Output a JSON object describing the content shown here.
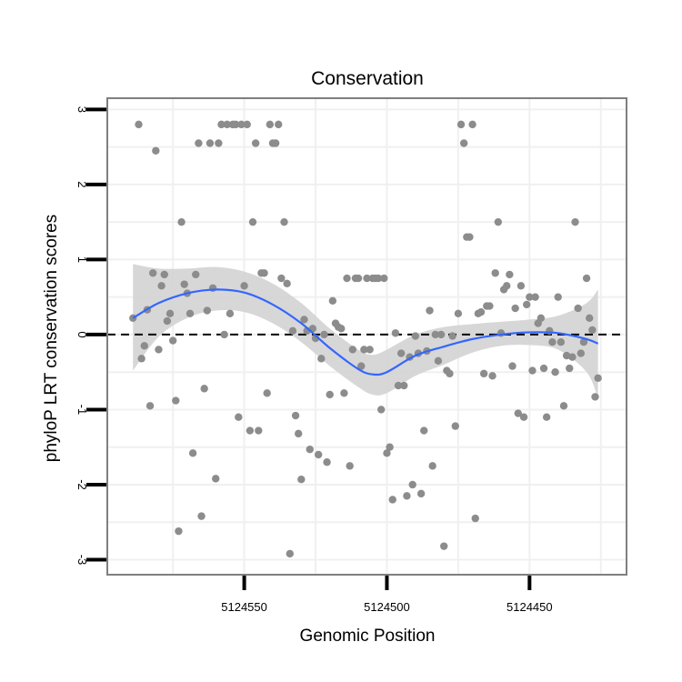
{
  "chart_data": {
    "type": "scatter",
    "title": "Conservation",
    "xlabel": "Genomic Position",
    "ylabel": "phyloP LRT conservation scores",
    "x_reversed": true,
    "xlim": [
      5124416,
      5124598
    ],
    "ylim": [
      -3.2,
      3.15
    ],
    "x_ticks": [
      5124550,
      5124500,
      5124450
    ],
    "x_tick_labels": [
      "5124550",
      "5124500",
      "5124450"
    ],
    "y_ticks": [
      3,
      2,
      1,
      0,
      -1,
      -2,
      -3
    ],
    "y_tick_labels": [
      "3",
      "2",
      "1",
      "0",
      "-1",
      "-2",
      "-3"
    ],
    "reference_line": {
      "y": 0,
      "style": "dashed",
      "color": "#000000"
    },
    "colors": {
      "points": "#8c8c8c",
      "smooth": "#3366ff",
      "band": "#d3d3d3",
      "grid": "#f0f0f0",
      "frame": "#7f7f7f"
    },
    "points": [
      [
        5124589,
        0.22
      ],
      [
        5124587,
        2.8
      ],
      [
        5124586,
        -0.32
      ],
      [
        5124585,
        -0.15
      ],
      [
        5124584,
        0.33
      ],
      [
        5124583,
        -0.95
      ],
      [
        5124582,
        0.82
      ],
      [
        5124581,
        2.45
      ],
      [
        5124580,
        -0.2
      ],
      [
        5124579,
        0.65
      ],
      [
        5124578,
        0.8
      ],
      [
        5124577,
        0.18
      ],
      [
        5124576,
        0.28
      ],
      [
        5124575,
        -0.08
      ],
      [
        5124574,
        -0.88
      ],
      [
        5124573,
        -2.62
      ],
      [
        5124572,
        1.5
      ],
      [
        5124571,
        0.67
      ],
      [
        5124570,
        0.55
      ],
      [
        5124569,
        0.28
      ],
      [
        5124568,
        -1.58
      ],
      [
        5124567,
        0.8
      ],
      [
        5124566,
        2.55
      ],
      [
        5124565,
        -2.42
      ],
      [
        5124564,
        -0.72
      ],
      [
        5124563,
        0.32
      ],
      [
        5124562,
        2.55
      ],
      [
        5124561,
        0.62
      ],
      [
        5124560,
        -1.92
      ],
      [
        5124559,
        2.55
      ],
      [
        5124558,
        2.8
      ],
      [
        5124557,
        0.0
      ],
      [
        5124556,
        2.8
      ],
      [
        5124555,
        0.28
      ],
      [
        5124554,
        2.8
      ],
      [
        5124553,
        2.8
      ],
      [
        5124552,
        -1.1
      ],
      [
        5124551,
        2.8
      ],
      [
        5124550,
        0.65
      ],
      [
        5124549,
        2.8
      ],
      [
        5124548,
        -1.28
      ],
      [
        5124547,
        1.5
      ],
      [
        5124546,
        2.55
      ],
      [
        5124545,
        -1.28
      ],
      [
        5124544,
        0.82
      ],
      [
        5124543,
        0.82
      ],
      [
        5124542,
        -0.78
      ],
      [
        5124541,
        2.8
      ],
      [
        5124540,
        2.55
      ],
      [
        5124539,
        2.55
      ],
      [
        5124538,
        2.8
      ],
      [
        5124537,
        0.75
      ],
      [
        5124536,
        1.5
      ],
      [
        5124535,
        0.68
      ],
      [
        5124534,
        -2.92
      ],
      [
        5124533,
        0.05
      ],
      [
        5124532,
        -1.08
      ],
      [
        5124531,
        -1.32
      ],
      [
        5124530,
        -1.93
      ],
      [
        5124529,
        0.2
      ],
      [
        5124528,
        0.05
      ],
      [
        5124527,
        -1.53
      ],
      [
        5124526,
        0.08
      ],
      [
        5124525,
        -0.05
      ],
      [
        5124524,
        -1.6
      ],
      [
        5124523,
        -0.32
      ],
      [
        5124522,
        0.0
      ],
      [
        5124521,
        -1.7
      ],
      [
        5124520,
        -0.8
      ],
      [
        5124519,
        0.45
      ],
      [
        5124518,
        0.15
      ],
      [
        5124517,
        0.1
      ],
      [
        5124516,
        0.08
      ],
      [
        5124515,
        -0.78
      ],
      [
        5124514,
        0.75
      ],
      [
        5124513,
        -1.75
      ],
      [
        5124512,
        -0.2
      ],
      [
        5124511,
        0.75
      ],
      [
        5124510,
        0.75
      ],
      [
        5124509,
        -0.42
      ],
      [
        5124508,
        -0.2
      ],
      [
        5124507,
        0.75
      ],
      [
        5124506,
        -0.2
      ],
      [
        5124505,
        0.75
      ],
      [
        5124504,
        0.75
      ],
      [
        5124503,
        0.75
      ],
      [
        5124502,
        -1.0
      ],
      [
        5124501,
        0.75
      ],
      [
        5124500,
        -1.58
      ],
      [
        5124499,
        -1.5
      ],
      [
        5124498,
        -2.2
      ],
      [
        5124497,
        0.02
      ],
      [
        5124496,
        -0.68
      ],
      [
        5124495,
        -0.25
      ],
      [
        5124494,
        -0.68
      ],
      [
        5124493,
        -2.15
      ],
      [
        5124492,
        -0.3
      ],
      [
        5124491,
        -2.0
      ],
      [
        5124490,
        -0.02
      ],
      [
        5124489,
        -0.25
      ],
      [
        5124488,
        -2.12
      ],
      [
        5124487,
        -1.28
      ],
      [
        5124486,
        -0.22
      ],
      [
        5124485,
        0.32
      ],
      [
        5124484,
        -1.75
      ],
      [
        5124483,
        0.0
      ],
      [
        5124482,
        -0.35
      ],
      [
        5124481,
        0.0
      ],
      [
        5124480,
        -2.82
      ],
      [
        5124479,
        -0.48
      ],
      [
        5124478,
        -0.52
      ],
      [
        5124477,
        -0.02
      ],
      [
        5124476,
        -1.22
      ],
      [
        5124475,
        0.28
      ],
      [
        5124474,
        2.8
      ],
      [
        5124473,
        2.55
      ],
      [
        5124472,
        1.3
      ],
      [
        5124471,
        1.3
      ],
      [
        5124470,
        2.8
      ],
      [
        5124469,
        -2.45
      ],
      [
        5124468,
        0.28
      ],
      [
        5124467,
        0.3
      ],
      [
        5124466,
        -0.52
      ],
      [
        5124465,
        0.38
      ],
      [
        5124464,
        0.38
      ],
      [
        5124463,
        -0.55
      ],
      [
        5124462,
        0.82
      ],
      [
        5124461,
        1.5
      ],
      [
        5124460,
        0.02
      ],
      [
        5124459,
        0.6
      ],
      [
        5124458,
        0.65
      ],
      [
        5124457,
        0.8
      ],
      [
        5124456,
        -0.42
      ],
      [
        5124455,
        0.35
      ],
      [
        5124454,
        -1.05
      ],
      [
        5124453,
        0.65
      ],
      [
        5124452,
        -1.1
      ],
      [
        5124451,
        0.4
      ],
      [
        5124450,
        0.5
      ],
      [
        5124449,
        -0.48
      ],
      [
        5124448,
        0.5
      ],
      [
        5124447,
        0.15
      ],
      [
        5124446,
        0.22
      ],
      [
        5124445,
        -0.45
      ],
      [
        5124444,
        -1.1
      ],
      [
        5124443,
        0.05
      ],
      [
        5124442,
        -0.1
      ],
      [
        5124441,
        -0.5
      ],
      [
        5124440,
        0.5
      ],
      [
        5124439,
        -0.1
      ],
      [
        5124438,
        -0.95
      ],
      [
        5124437,
        -0.28
      ],
      [
        5124436,
        -0.45
      ],
      [
        5124435,
        -0.3
      ],
      [
        5124434,
        1.5
      ],
      [
        5124433,
        0.35
      ],
      [
        5124432,
        -0.25
      ],
      [
        5124431,
        -0.1
      ],
      [
        5124430,
        0.75
      ],
      [
        5124429,
        0.22
      ],
      [
        5124428,
        0.06
      ],
      [
        5124427,
        -0.83
      ],
      [
        5124426,
        -0.58
      ]
    ],
    "smooth": {
      "method": "loess",
      "x": [
        5124589,
        5124580,
        5124570,
        5124560,
        5124550,
        5124540,
        5124530,
        5124520,
        5124510,
        5124505,
        5124500,
        5124490,
        5124480,
        5124470,
        5124460,
        5124450,
        5124440,
        5124430,
        5124426
      ],
      "y": [
        0.22,
        0.42,
        0.55,
        0.6,
        0.56,
        0.4,
        0.15,
        -0.18,
        -0.46,
        -0.53,
        -0.5,
        -0.28,
        -0.16,
        -0.06,
        0.0,
        0.03,
        0.02,
        -0.06,
        -0.12
      ],
      "lower": [
        -0.48,
        -0.03,
        0.22,
        0.32,
        0.3,
        0.15,
        -0.1,
        -0.42,
        -0.7,
        -0.8,
        -0.78,
        -0.55,
        -0.4,
        -0.24,
        -0.15,
        -0.14,
        -0.2,
        -0.5,
        -0.85
      ],
      "upper": [
        0.94,
        0.88,
        0.88,
        0.9,
        0.84,
        0.68,
        0.42,
        0.08,
        -0.2,
        -0.27,
        -0.2,
        0.0,
        0.1,
        0.14,
        0.17,
        0.2,
        0.25,
        0.42,
        0.6
      ]
    }
  }
}
